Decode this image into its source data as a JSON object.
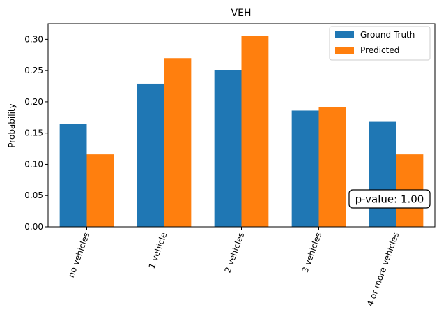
{
  "chart_data": {
    "type": "bar",
    "title": "VEH",
    "xlabel": "",
    "ylabel": "Probability",
    "categories": [
      "no vehicles",
      "1 vehicle",
      "2 vehicles",
      "3 vehicles",
      "4 or more vehicles"
    ],
    "series": [
      {
        "name": "Ground Truth",
        "color": "#1f77b4",
        "values": [
          0.165,
          0.229,
          0.251,
          0.186,
          0.168
        ]
      },
      {
        "name": "Predicted",
        "color": "#ff7f0e",
        "values": [
          0.116,
          0.27,
          0.306,
          0.191,
          0.116
        ]
      }
    ],
    "ylim": [
      0,
      0.325
    ],
    "yticks": [
      0.0,
      0.05,
      0.1,
      0.15,
      0.2,
      0.25,
      0.3
    ],
    "ytick_labels": [
      "0.00",
      "0.05",
      "0.10",
      "0.15",
      "0.20",
      "0.25",
      "0.30"
    ],
    "grid": false,
    "legend_position": "top-right",
    "annotation": "p-value: 1.00"
  }
}
